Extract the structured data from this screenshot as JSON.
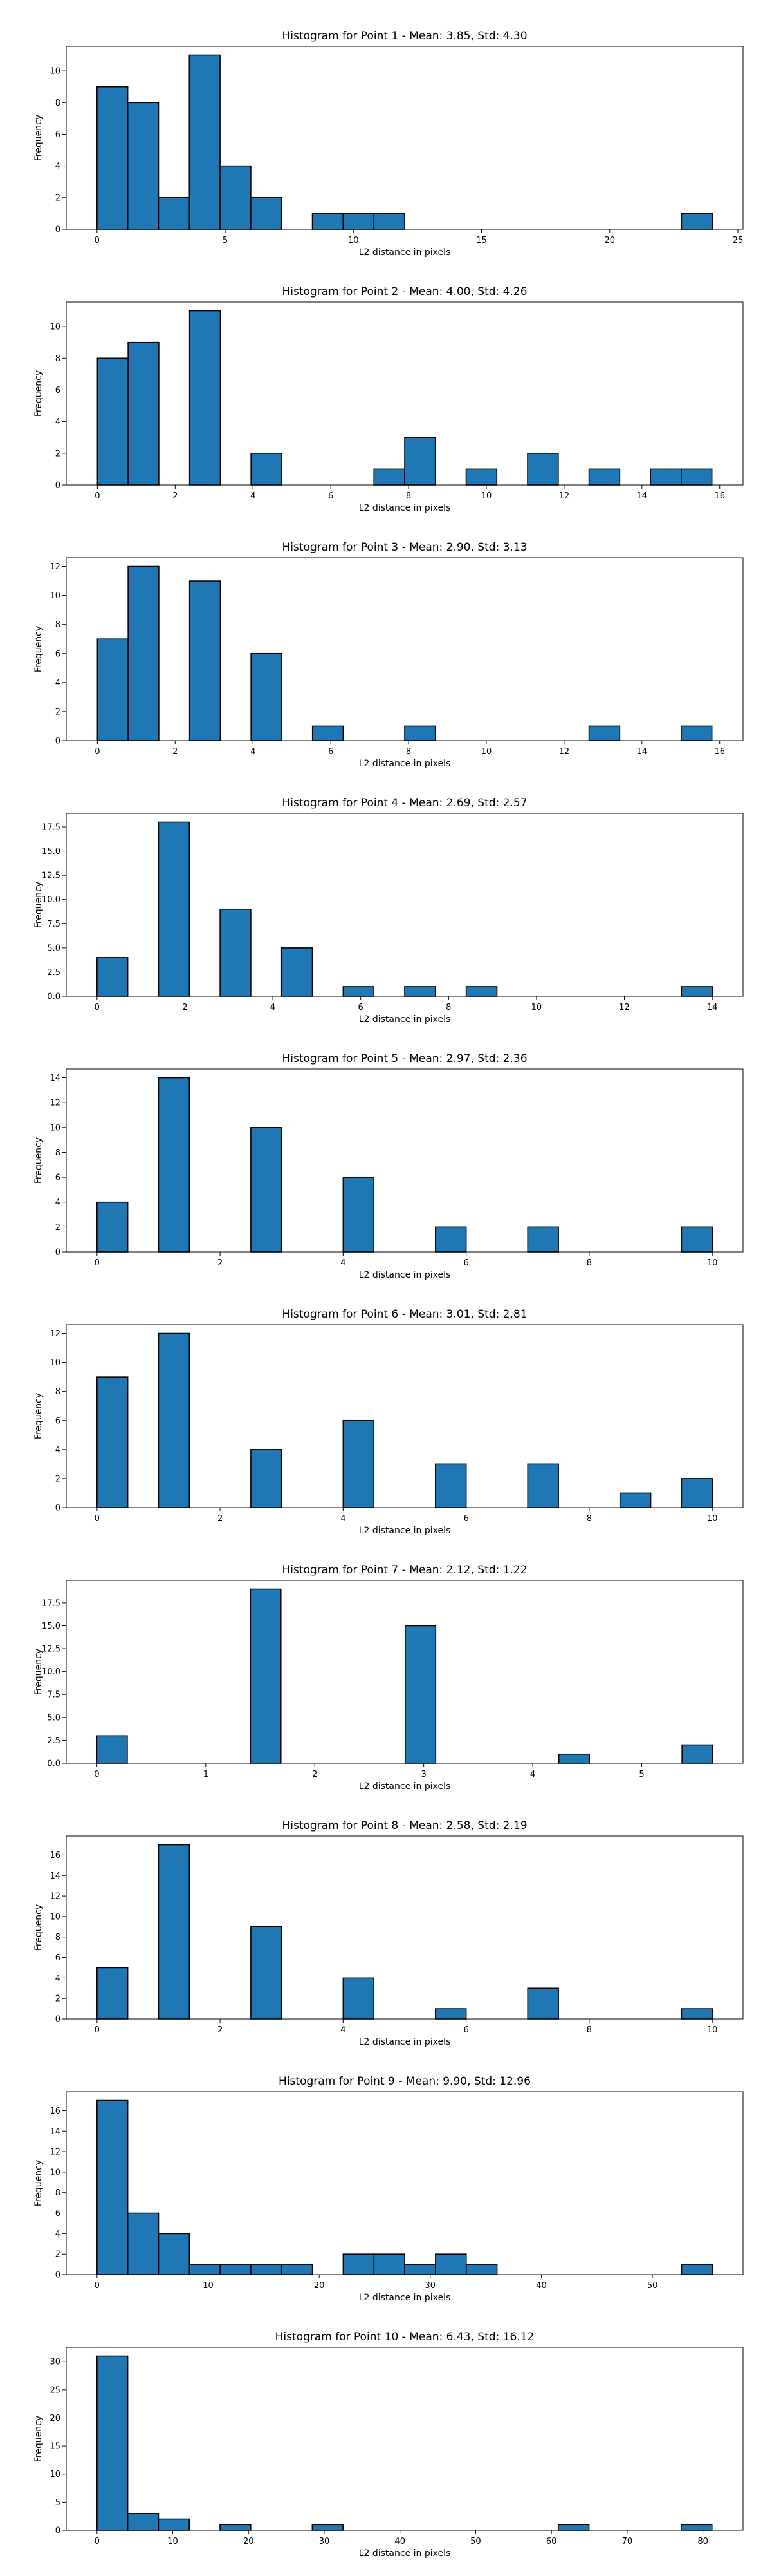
{
  "figure": {
    "bar_color": "#1f77b4",
    "edge_color": "#000000",
    "background": "#ffffff"
  },
  "chart_data": [
    {
      "type": "bar",
      "title": "Histogram for Point 1 - Mean: 3.85, Std: 4.30",
      "xlabel": "L2 distance in pixels",
      "ylabel": "Frequency",
      "xlim": [
        -1.2,
        25.2
      ],
      "ylim": [
        0,
        11.55
      ],
      "xticks": [
        "0",
        "5",
        "10",
        "15",
        "20",
        "25"
      ],
      "yticks": [
        "0",
        "2",
        "4",
        "6",
        "8",
        "10"
      ],
      "bins": [
        {
          "x0": 0.0,
          "x1": 1.2,
          "count": 9
        },
        {
          "x0": 1.2,
          "x1": 2.4,
          "count": 8
        },
        {
          "x0": 2.4,
          "x1": 3.6,
          "count": 2
        },
        {
          "x0": 3.6,
          "x1": 4.8,
          "count": 11
        },
        {
          "x0": 4.8,
          "x1": 6.0,
          "count": 4
        },
        {
          "x0": 6.0,
          "x1": 7.2,
          "count": 2
        },
        {
          "x0": 8.4,
          "x1": 9.6,
          "count": 1
        },
        {
          "x0": 9.6,
          "x1": 10.8,
          "count": 1
        },
        {
          "x0": 10.8,
          "x1": 12.0,
          "count": 1
        },
        {
          "x0": 22.8,
          "x1": 24.0,
          "count": 1
        }
      ]
    },
    {
      "type": "bar",
      "title": "Histogram for Point 2 - Mean: 4.00, Std: 4.26",
      "xlabel": "L2 distance in pixels",
      "ylabel": "Frequency",
      "xlim": [
        -0.8,
        16.6
      ],
      "ylim": [
        0,
        11.55
      ],
      "xticks": [
        "0",
        "2",
        "4",
        "6",
        "8",
        "10",
        "12",
        "14",
        "16"
      ],
      "yticks": [
        "0",
        "2",
        "4",
        "6",
        "8",
        "10"
      ],
      "bins": [
        {
          "x0": 0.0,
          "x1": 0.79,
          "count": 8
        },
        {
          "x0": 0.79,
          "x1": 1.58,
          "count": 9
        },
        {
          "x0": 2.37,
          "x1": 3.16,
          "count": 11
        },
        {
          "x0": 3.95,
          "x1": 4.74,
          "count": 2
        },
        {
          "x0": 7.11,
          "x1": 7.9,
          "count": 1
        },
        {
          "x0": 7.9,
          "x1": 8.69,
          "count": 3
        },
        {
          "x0": 9.48,
          "x1": 10.27,
          "count": 1
        },
        {
          "x0": 11.06,
          "x1": 11.85,
          "count": 2
        },
        {
          "x0": 12.64,
          "x1": 13.43,
          "count": 1
        },
        {
          "x0": 14.22,
          "x1": 15.01,
          "count": 1
        },
        {
          "x0": 15.01,
          "x1": 15.8,
          "count": 1
        }
      ]
    },
    {
      "type": "bar",
      "title": "Histogram for Point 3 - Mean: 2.90, Std: 3.13",
      "xlabel": "L2 distance in pixels",
      "ylabel": "Frequency",
      "xlim": [
        -0.8,
        16.6
      ],
      "ylim": [
        0,
        12.6
      ],
      "xticks": [
        "0",
        "2",
        "4",
        "6",
        "8",
        "10",
        "12",
        "14",
        "16"
      ],
      "yticks": [
        "0",
        "2",
        "4",
        "6",
        "8",
        "10",
        "12"
      ],
      "bins": [
        {
          "x0": 0.0,
          "x1": 0.79,
          "count": 7
        },
        {
          "x0": 0.79,
          "x1": 1.58,
          "count": 12
        },
        {
          "x0": 2.37,
          "x1": 3.16,
          "count": 11
        },
        {
          "x0": 3.95,
          "x1": 4.74,
          "count": 6
        },
        {
          "x0": 5.53,
          "x1": 6.32,
          "count": 1
        },
        {
          "x0": 7.9,
          "x1": 8.69,
          "count": 1
        },
        {
          "x0": 12.64,
          "x1": 13.43,
          "count": 1
        },
        {
          "x0": 15.01,
          "x1": 15.8,
          "count": 1
        }
      ]
    },
    {
      "type": "bar",
      "title": "Histogram for Point 4 - Mean: 2.69, Std: 2.57",
      "xlabel": "L2 distance in pixels",
      "ylabel": "Frequency",
      "xlim": [
        -0.7,
        14.7
      ],
      "ylim": [
        0,
        18.9
      ],
      "xticks": [
        "0",
        "2",
        "4",
        "6",
        "8",
        "10",
        "12",
        "14"
      ],
      "yticks": [
        "0.0",
        "2.5",
        "5.0",
        "7.5",
        "10.0",
        "12.5",
        "15.0",
        "17.5"
      ],
      "bins": [
        {
          "x0": 0.0,
          "x1": 0.7,
          "count": 4
        },
        {
          "x0": 1.4,
          "x1": 2.1,
          "count": 18
        },
        {
          "x0": 2.8,
          "x1": 3.5,
          "count": 9
        },
        {
          "x0": 4.2,
          "x1": 4.9,
          "count": 5
        },
        {
          "x0": 5.6,
          "x1": 6.3,
          "count": 1
        },
        {
          "x0": 7.0,
          "x1": 7.7,
          "count": 1
        },
        {
          "x0": 8.4,
          "x1": 9.1,
          "count": 1
        },
        {
          "x0": 13.3,
          "x1": 14.0,
          "count": 1
        }
      ]
    },
    {
      "type": "bar",
      "title": "Histogram for Point 5 - Mean: 2.97, Std: 2.36",
      "xlabel": "L2 distance in pixels",
      "ylabel": "Frequency",
      "xlim": [
        -0.5,
        10.5
      ],
      "ylim": [
        0,
        14.7
      ],
      "xticks": [
        "0",
        "2",
        "4",
        "6",
        "8",
        "10"
      ],
      "yticks": [
        "0",
        "2",
        "4",
        "6",
        "8",
        "10",
        "12",
        "14"
      ],
      "bins": [
        {
          "x0": 0.0,
          "x1": 0.5,
          "count": 4
        },
        {
          "x0": 1.0,
          "x1": 1.5,
          "count": 14
        },
        {
          "x0": 2.5,
          "x1": 3.0,
          "count": 10
        },
        {
          "x0": 4.0,
          "x1": 4.5,
          "count": 6
        },
        {
          "x0": 5.5,
          "x1": 6.0,
          "count": 2
        },
        {
          "x0": 7.0,
          "x1": 7.5,
          "count": 2
        },
        {
          "x0": 9.5,
          "x1": 10.0,
          "count": 2
        }
      ]
    },
    {
      "type": "bar",
      "title": "Histogram for Point 6 - Mean: 3.01, Std: 2.81",
      "xlabel": "L2 distance in pixels",
      "ylabel": "Frequency",
      "xlim": [
        -0.5,
        10.5
      ],
      "ylim": [
        0,
        12.6
      ],
      "xticks": [
        "0",
        "2",
        "4",
        "6",
        "8",
        "10"
      ],
      "yticks": [
        "0",
        "2",
        "4",
        "6",
        "8",
        "10",
        "12"
      ],
      "bins": [
        {
          "x0": 0.0,
          "x1": 0.5,
          "count": 9
        },
        {
          "x0": 1.0,
          "x1": 1.5,
          "count": 12
        },
        {
          "x0": 2.5,
          "x1": 3.0,
          "count": 4
        },
        {
          "x0": 4.0,
          "x1": 4.5,
          "count": 6
        },
        {
          "x0": 5.5,
          "x1": 6.0,
          "count": 3
        },
        {
          "x0": 7.0,
          "x1": 7.5,
          "count": 3
        },
        {
          "x0": 8.5,
          "x1": 9.0,
          "count": 1
        },
        {
          "x0": 9.5,
          "x1": 10.0,
          "count": 2
        }
      ]
    },
    {
      "type": "bar",
      "title": "Histogram for Point 7 - Mean: 2.12, Std: 1.22",
      "xlabel": "L2 distance in pixels",
      "ylabel": "Frequency",
      "xlim": [
        -0.28,
        5.93
      ],
      "ylim": [
        0,
        19.95
      ],
      "xticks": [
        "0",
        "1",
        "2",
        "3",
        "4",
        "5"
      ],
      "yticks": [
        "0.0",
        "2.5",
        "5.0",
        "7.5",
        "10.0",
        "12.5",
        "15.0",
        "17.5"
      ],
      "bins": [
        {
          "x0": 0.0,
          "x1": 0.28,
          "count": 3
        },
        {
          "x0": 1.41,
          "x1": 1.69,
          "count": 19
        },
        {
          "x0": 2.83,
          "x1": 3.11,
          "count": 15
        },
        {
          "x0": 4.24,
          "x1": 4.52,
          "count": 1
        },
        {
          "x0": 5.37,
          "x1": 5.65,
          "count": 2
        }
      ]
    },
    {
      "type": "bar",
      "title": "Histogram for Point 8 - Mean: 2.58, Std: 2.19",
      "xlabel": "L2 distance in pixels",
      "ylabel": "Frequency",
      "xlim": [
        -0.5,
        10.5
      ],
      "ylim": [
        0,
        17.85
      ],
      "xticks": [
        "0",
        "2",
        "4",
        "6",
        "8",
        "10"
      ],
      "yticks": [
        "0",
        "2",
        "4",
        "6",
        "8",
        "10",
        "12",
        "14",
        "16"
      ],
      "bins": [
        {
          "x0": 0.0,
          "x1": 0.5,
          "count": 5
        },
        {
          "x0": 1.0,
          "x1": 1.5,
          "count": 17
        },
        {
          "x0": 2.5,
          "x1": 3.0,
          "count": 9
        },
        {
          "x0": 4.0,
          "x1": 4.5,
          "count": 4
        },
        {
          "x0": 5.5,
          "x1": 6.0,
          "count": 1
        },
        {
          "x0": 7.0,
          "x1": 7.5,
          "count": 3
        },
        {
          "x0": 9.5,
          "x1": 10.0,
          "count": 1
        }
      ]
    },
    {
      "type": "bar",
      "title": "Histogram for Point 9 - Mean: 9.90, Std: 12.96",
      "xlabel": "L2 distance in pixels",
      "ylabel": "Frequency",
      "xlim": [
        -2.77,
        58.16
      ],
      "ylim": [
        0,
        17.85
      ],
      "xticks": [
        "0",
        "10",
        "20",
        "30",
        "40",
        "50"
      ],
      "yticks": [
        "0",
        "2",
        "4",
        "6",
        "8",
        "10",
        "12",
        "14",
        "16"
      ],
      "bins": [
        {
          "x0": 0.0,
          "x1": 2.77,
          "count": 17
        },
        {
          "x0": 2.77,
          "x1": 5.54,
          "count": 6
        },
        {
          "x0": 5.54,
          "x1": 8.31,
          "count": 4
        },
        {
          "x0": 8.31,
          "x1": 11.08,
          "count": 1
        },
        {
          "x0": 11.08,
          "x1": 13.85,
          "count": 1
        },
        {
          "x0": 13.85,
          "x1": 16.62,
          "count": 1
        },
        {
          "x0": 16.62,
          "x1": 19.39,
          "count": 1
        },
        {
          "x0": 22.16,
          "x1": 24.93,
          "count": 2
        },
        {
          "x0": 24.93,
          "x1": 27.7,
          "count": 2
        },
        {
          "x0": 27.7,
          "x1": 30.47,
          "count": 1
        },
        {
          "x0": 30.47,
          "x1": 33.24,
          "count": 2
        },
        {
          "x0": 33.24,
          "x1": 36.01,
          "count": 1
        },
        {
          "x0": 52.63,
          "x1": 55.4,
          "count": 1
        }
      ]
    },
    {
      "type": "bar",
      "title": "Histogram for Point 10 - Mean: 6.43, Std: 16.12",
      "xlabel": "L2 distance in pixels",
      "ylabel": "Frequency",
      "xlim": [
        -4.06,
        85.3
      ],
      "ylim": [
        0,
        32.55
      ],
      "xticks": [
        "0",
        "10",
        "20",
        "30",
        "40",
        "50",
        "60",
        "70",
        "80"
      ],
      "yticks": [
        "0",
        "5",
        "10",
        "15",
        "20",
        "25",
        "30"
      ],
      "bins": [
        {
          "x0": 0.0,
          "x1": 4.06,
          "count": 31
        },
        {
          "x0": 4.06,
          "x1": 8.12,
          "count": 3
        },
        {
          "x0": 8.12,
          "x1": 12.18,
          "count": 2
        },
        {
          "x0": 16.24,
          "x1": 20.3,
          "count": 1
        },
        {
          "x0": 28.42,
          "x1": 32.48,
          "count": 1
        },
        {
          "x0": 60.9,
          "x1": 64.96,
          "count": 1
        },
        {
          "x0": 77.14,
          "x1": 81.2,
          "count": 1
        }
      ]
    }
  ]
}
